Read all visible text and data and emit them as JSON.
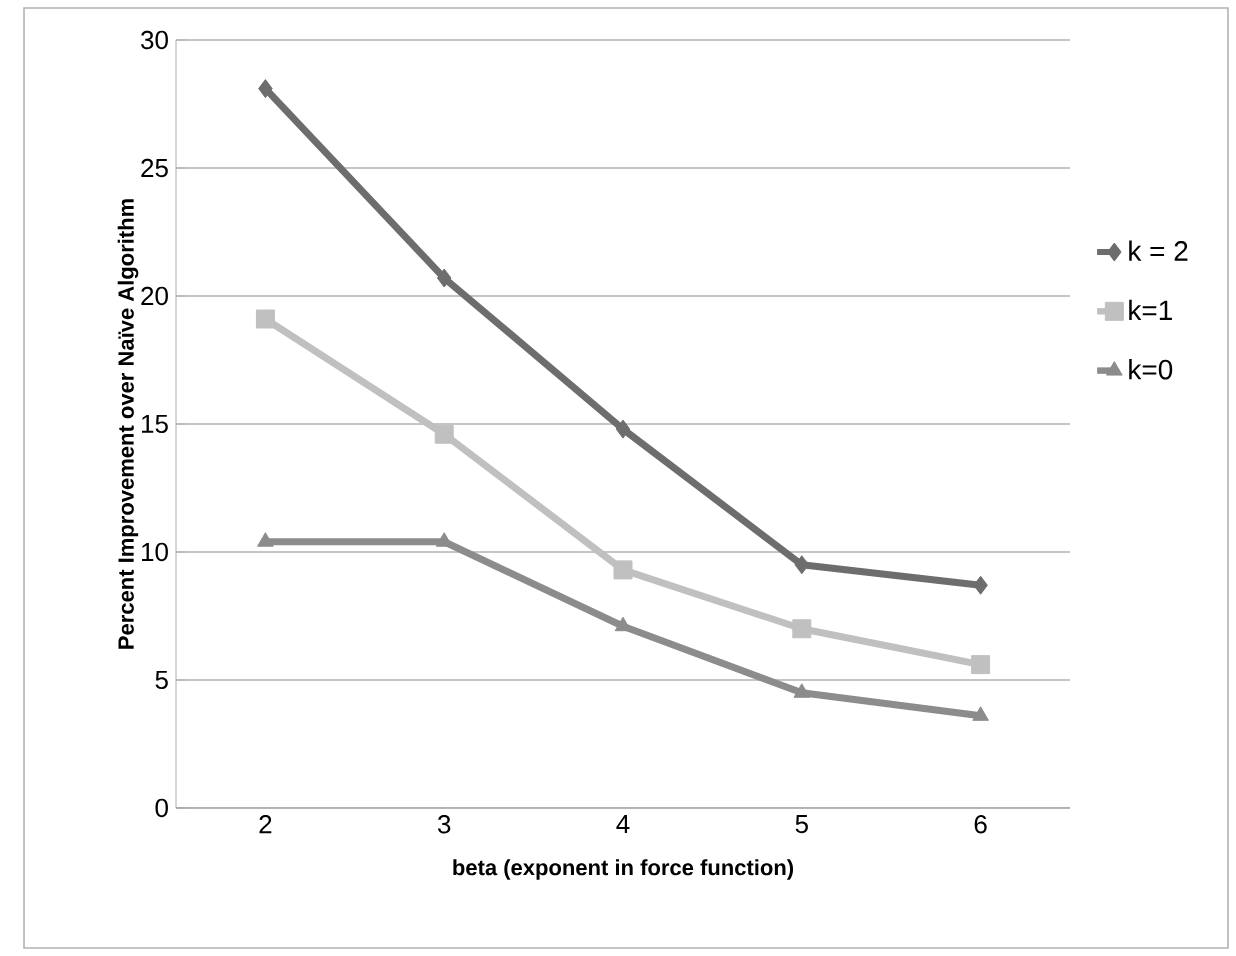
{
  "chart_data": {
    "type": "line",
    "xlabel": "beta (exponent in force function)",
    "ylabel": "Percent Improvement over Naïve Algorithm",
    "categories": [
      "2",
      "3",
      "4",
      "5",
      "6"
    ],
    "series": [
      {
        "name": "k = 2",
        "color": "#6d6d6d",
        "marker": "diamond",
        "values": [
          28.1,
          20.7,
          14.8,
          9.5,
          8.7
        ]
      },
      {
        "name": "k=1",
        "color": "#c0c0c0",
        "marker": "square",
        "values": [
          19.1,
          14.6,
          9.3,
          7.0,
          5.6
        ]
      },
      {
        "name": "k=0",
        "color": "#8c8c8c",
        "marker": "triangle",
        "values": [
          10.4,
          10.4,
          7.1,
          4.5,
          3.6
        ]
      }
    ],
    "ylim": [
      0,
      30
    ],
    "yticks": [
      0,
      5,
      10,
      15,
      20,
      25,
      30
    ],
    "grid": "y",
    "legend": "right",
    "line_style": "solid"
  }
}
